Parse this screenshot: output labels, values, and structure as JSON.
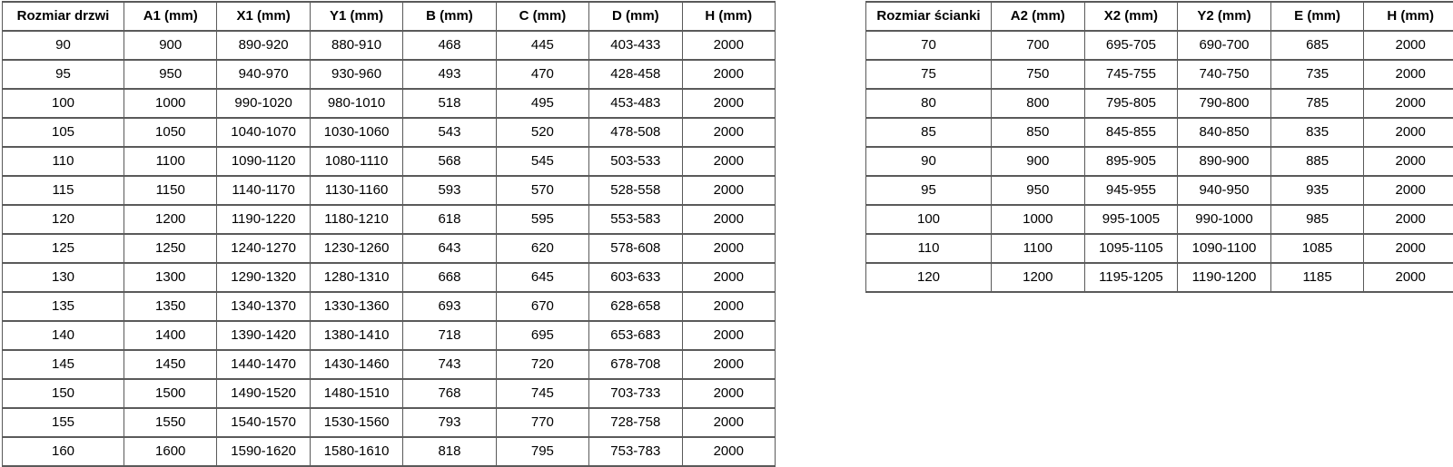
{
  "colors": {
    "border": "#5a5a5a",
    "text": "#000000",
    "background": "#ffffff"
  },
  "chart_data": [
    {
      "type": "table",
      "title": "Rozmiar drzwi",
      "columns": [
        "Rozmiar drzwi",
        "A1 (mm)",
        "X1 (mm)",
        "Y1 (mm)",
        "B (mm)",
        "C (mm)",
        "D (mm)",
        "H (mm)"
      ],
      "rows": [
        [
          "90",
          "900",
          "890-920",
          "880-910",
          "468",
          "445",
          "403-433",
          "2000"
        ],
        [
          "95",
          "950",
          "940-970",
          "930-960",
          "493",
          "470",
          "428-458",
          "2000"
        ],
        [
          "100",
          "1000",
          "990-1020",
          "980-1010",
          "518",
          "495",
          "453-483",
          "2000"
        ],
        [
          "105",
          "1050",
          "1040-1070",
          "1030-1060",
          "543",
          "520",
          "478-508",
          "2000"
        ],
        [
          "110",
          "1100",
          "1090-1120",
          "1080-1110",
          "568",
          "545",
          "503-533",
          "2000"
        ],
        [
          "115",
          "1150",
          "1140-1170",
          "1130-1160",
          "593",
          "570",
          "528-558",
          "2000"
        ],
        [
          "120",
          "1200",
          "1190-1220",
          "1180-1210",
          "618",
          "595",
          "553-583",
          "2000"
        ],
        [
          "125",
          "1250",
          "1240-1270",
          "1230-1260",
          "643",
          "620",
          "578-608",
          "2000"
        ],
        [
          "130",
          "1300",
          "1290-1320",
          "1280-1310",
          "668",
          "645",
          "603-633",
          "2000"
        ],
        [
          "135",
          "1350",
          "1340-1370",
          "1330-1360",
          "693",
          "670",
          "628-658",
          "2000"
        ],
        [
          "140",
          "1400",
          "1390-1420",
          "1380-1410",
          "718",
          "695",
          "653-683",
          "2000"
        ],
        [
          "145",
          "1450",
          "1440-1470",
          "1430-1460",
          "743",
          "720",
          "678-708",
          "2000"
        ],
        [
          "150",
          "1500",
          "1490-1520",
          "1480-1510",
          "768",
          "745",
          "703-733",
          "2000"
        ],
        [
          "155",
          "1550",
          "1540-1570",
          "1530-1560",
          "793",
          "770",
          "728-758",
          "2000"
        ],
        [
          "160",
          "1600",
          "1590-1620",
          "1580-1610",
          "818",
          "795",
          "753-783",
          "2000"
        ]
      ]
    },
    {
      "type": "table",
      "title": "Rozmiar ścianki",
      "columns": [
        "Rozmiar ścianki",
        "A2 (mm)",
        "X2 (mm)",
        "Y2 (mm)",
        "E (mm)",
        "H (mm)"
      ],
      "rows": [
        [
          "70",
          "700",
          "695-705",
          "690-700",
          "685",
          "2000"
        ],
        [
          "75",
          "750",
          "745-755",
          "740-750",
          "735",
          "2000"
        ],
        [
          "80",
          "800",
          "795-805",
          "790-800",
          "785",
          "2000"
        ],
        [
          "85",
          "850",
          "845-855",
          "840-850",
          "835",
          "2000"
        ],
        [
          "90",
          "900",
          "895-905",
          "890-900",
          "885",
          "2000"
        ],
        [
          "95",
          "950",
          "945-955",
          "940-950",
          "935",
          "2000"
        ],
        [
          "100",
          "1000",
          "995-1005",
          "990-1000",
          "985",
          "2000"
        ],
        [
          "110",
          "1100",
          "1095-1105",
          "1090-1100",
          "1085",
          "2000"
        ],
        [
          "120",
          "1200",
          "1195-1205",
          "1190-1200",
          "1185",
          "2000"
        ]
      ]
    }
  ]
}
